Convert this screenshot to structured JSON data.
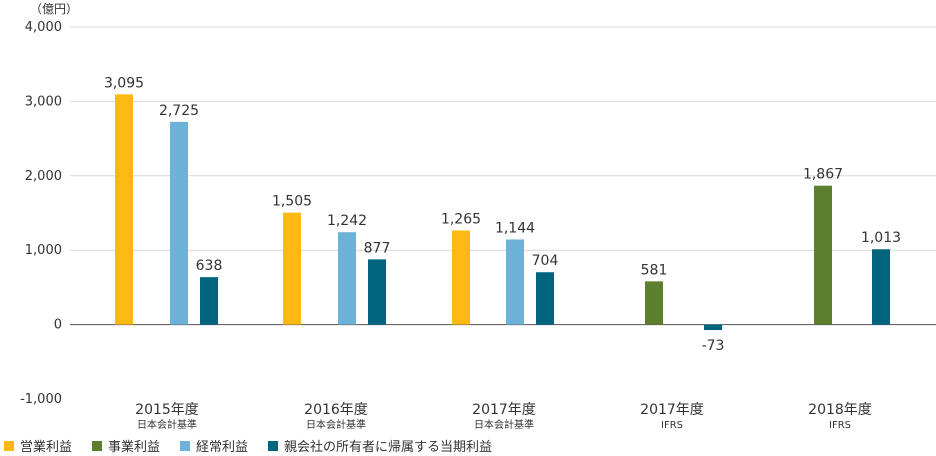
{
  "chart_data": {
    "type": "bar",
    "unit": "（億円）",
    "ylim": [
      -1000,
      4000
    ],
    "yticks": [
      {
        "value": 4000,
        "label": "4,000"
      },
      {
        "value": 3000,
        "label": "3,000"
      },
      {
        "value": 2000,
        "label": "2,000"
      },
      {
        "value": 1000,
        "label": "1,000"
      },
      {
        "value": 0,
        "label": "0"
      },
      {
        "value": -1000,
        "label": "-1,000"
      }
    ],
    "grid": true,
    "legend_position": "bottom-left",
    "groups": [
      {
        "label": "2015年度",
        "sublabel": "日本会計基準"
      },
      {
        "label": "2016年度",
        "sublabel": "日本会計基準"
      },
      {
        "label": "2017年度",
        "sublabel": "日本会計基準"
      },
      {
        "label": "2017年度",
        "sublabel": "IFRS"
      },
      {
        "label": "2018年度",
        "sublabel": "IFRS"
      }
    ],
    "series": [
      {
        "name": "営業利益",
        "color": "#FDB913",
        "values": [
          3095,
          1505,
          1265,
          null,
          null
        ],
        "labels": [
          "3,095",
          "1,505",
          "1,265",
          "",
          ""
        ]
      },
      {
        "name": "事業利益",
        "color": "#5B7F2F",
        "values": [
          null,
          null,
          null,
          581,
          1867
        ],
        "labels": [
          "",
          "",
          "",
          "581",
          "1,867"
        ]
      },
      {
        "name": "経常利益",
        "color": "#6BB3D9",
        "values": [
          2725,
          1242,
          1144,
          null,
          null
        ],
        "labels": [
          "2,725",
          "1,242",
          "1,144",
          "",
          ""
        ]
      },
      {
        "name": "親会社の所有者に帰属する当期利益",
        "color": "#00647F",
        "values": [
          638,
          877,
          704,
          -73,
          1013
        ],
        "labels": [
          "638",
          "877",
          "704",
          "-73",
          "1,013"
        ]
      }
    ]
  }
}
